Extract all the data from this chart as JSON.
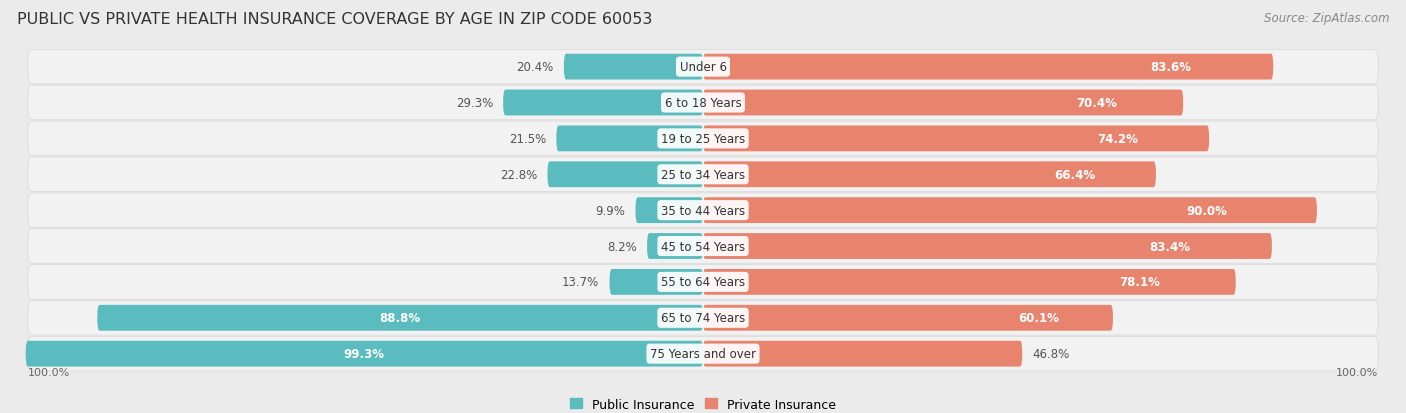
{
  "title": "PUBLIC VS PRIVATE HEALTH INSURANCE COVERAGE BY AGE IN ZIP CODE 60053",
  "source": "Source: ZipAtlas.com",
  "categories": [
    "Under 6",
    "6 to 18 Years",
    "19 to 25 Years",
    "25 to 34 Years",
    "35 to 44 Years",
    "45 to 54 Years",
    "55 to 64 Years",
    "65 to 74 Years",
    "75 Years and over"
  ],
  "public_values": [
    20.4,
    29.3,
    21.5,
    22.8,
    9.9,
    8.2,
    13.7,
    88.8,
    99.3
  ],
  "private_values": [
    83.6,
    70.4,
    74.2,
    66.4,
    90.0,
    83.4,
    78.1,
    60.1,
    46.8
  ],
  "public_color": "#5bbcbf",
  "private_color": "#e8836e",
  "bg_color": "#ebebeb",
  "row_bg_color": "#f2f2f2",
  "row_border_color": "#d8d8d8",
  "max_value": 100.0,
  "label_public": "Public Insurance",
  "label_private": "Private Insurance",
  "x_left_label": "100.0%",
  "x_right_label": "100.0%",
  "title_fontsize": 11.5,
  "source_fontsize": 8.5,
  "bar_label_fontsize": 8.5,
  "category_fontsize": 8.5,
  "legend_fontsize": 9,
  "axis_label_fontsize": 8
}
